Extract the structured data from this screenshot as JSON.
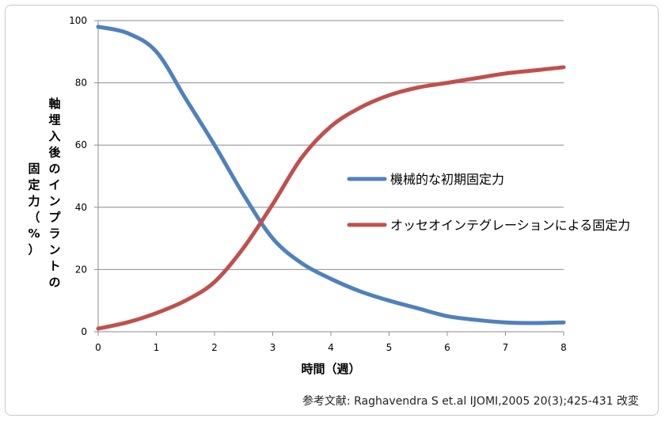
{
  "chart_data": {
    "type": "line",
    "title": "",
    "xlabel": "時間（週）",
    "ylabel_lines": [
      "軸",
      "埋",
      "入",
      "後",
      "の",
      "イ",
      "ン",
      "プ",
      "ラ",
      "ン",
      "ト",
      "の"
    ],
    "ylabel_lines2": [
      "固",
      "定",
      "力",
      "（",
      "%",
      "）"
    ],
    "xlim": [
      0,
      8
    ],
    "ylim": [
      0,
      100
    ],
    "x_ticks": [
      "0",
      "1",
      "2",
      "3",
      "4",
      "5",
      "6",
      "7",
      "8"
    ],
    "y_ticks": [
      "0",
      "20",
      "40",
      "60",
      "80",
      "100"
    ],
    "grid": "horizontal",
    "legend_position": "right",
    "series": [
      {
        "name": "機械的な初期固定力",
        "color": "#4f81bd",
        "x": [
          0,
          0.5,
          1,
          1.5,
          2,
          2.5,
          3,
          3.5,
          4,
          4.5,
          5,
          5.5,
          6,
          6.5,
          7,
          7.5,
          8
        ],
        "y": [
          98,
          96,
          90,
          75,
          60,
          44,
          30,
          22,
          17,
          13,
          10,
          7.5,
          5,
          3.8,
          3,
          2.8,
          3
        ]
      },
      {
        "name": "オッセオインテグレーションによる固定力",
        "color": "#c0504d",
        "x": [
          0,
          0.5,
          1,
          1.5,
          2,
          2.5,
          3,
          3.5,
          4,
          4.5,
          5,
          5.5,
          6,
          6.5,
          7,
          7.5,
          8
        ],
        "y": [
          1,
          3,
          6,
          10,
          16,
          27,
          41,
          56,
          66,
          72,
          76,
          78.5,
          80,
          81.5,
          83,
          84,
          85
        ]
      }
    ]
  },
  "reference": "参考文献: Raghavendra S et.al IJOMI,2005 20(3);425-431 改変"
}
